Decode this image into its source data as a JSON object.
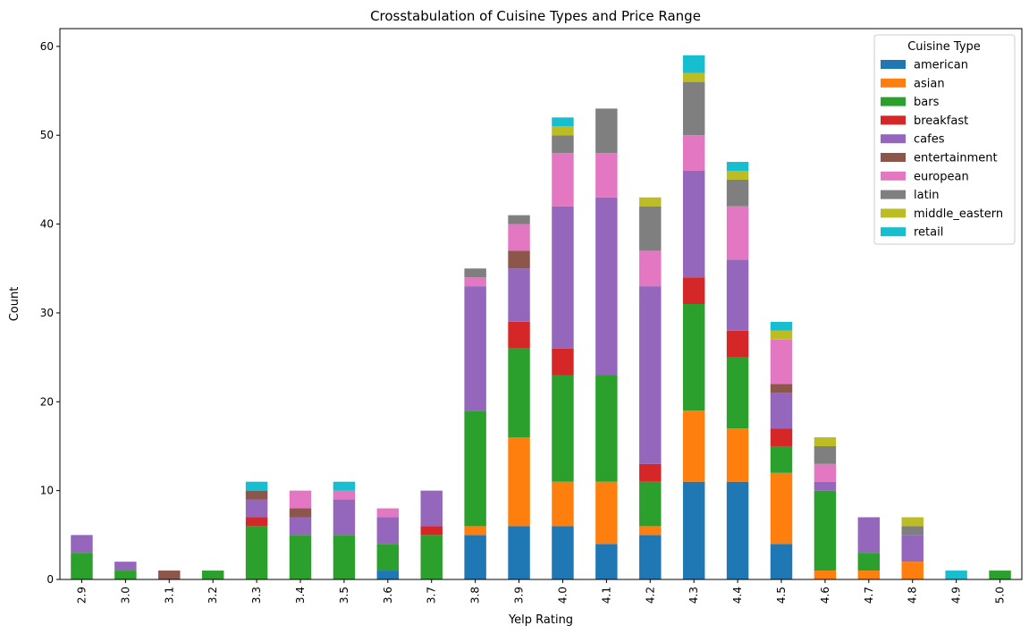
{
  "chart_data": {
    "type": "bar",
    "stacked": true,
    "title": "Crosstabulation of Cuisine Types and Price Range",
    "xlabel": "Yelp Rating",
    "ylabel": "Count",
    "ylim": [
      0,
      62
    ],
    "yticks": [
      0,
      10,
      20,
      30,
      40,
      50,
      60
    ],
    "grid": false,
    "legend": {
      "title": "Cuisine Type",
      "placement": "top-right"
    },
    "categories": [
      "2.9",
      "3.0",
      "3.1",
      "3.2",
      "3.3",
      "3.4",
      "3.5",
      "3.6",
      "3.7",
      "3.8",
      "3.9",
      "4.0",
      "4.1",
      "4.2",
      "4.3",
      "4.4",
      "4.5",
      "4.6",
      "4.7",
      "4.8",
      "4.9",
      "5.0"
    ],
    "series": [
      {
        "name": "american",
        "color": "#1f77b4",
        "values": [
          0,
          0,
          0,
          0,
          0,
          0,
          0,
          1,
          0,
          5,
          6,
          6,
          4,
          5,
          11,
          11,
          4,
          0,
          0,
          0,
          0,
          0
        ]
      },
      {
        "name": "asian",
        "color": "#ff7f0e",
        "values": [
          0,
          0,
          0,
          0,
          0,
          0,
          0,
          0,
          0,
          1,
          10,
          5,
          7,
          1,
          8,
          6,
          8,
          1,
          1,
          2,
          0,
          0
        ]
      },
      {
        "name": "bars",
        "color": "#2ca02c",
        "values": [
          3,
          1,
          0,
          1,
          6,
          5,
          5,
          3,
          5,
          13,
          10,
          12,
          12,
          5,
          12,
          8,
          3,
          9,
          2,
          0,
          0,
          1
        ]
      },
      {
        "name": "breakfast",
        "color": "#d62728",
        "values": [
          0,
          0,
          0,
          0,
          1,
          0,
          0,
          0,
          1,
          0,
          3,
          3,
          0,
          2,
          3,
          3,
          2,
          0,
          0,
          0,
          0,
          0
        ]
      },
      {
        "name": "cafes",
        "color": "#9467bd",
        "values": [
          2,
          1,
          0,
          0,
          2,
          2,
          4,
          3,
          4,
          14,
          6,
          16,
          20,
          20,
          12,
          8,
          4,
          1,
          4,
          3,
          0,
          0
        ]
      },
      {
        "name": "entertainment",
        "color": "#8c564b",
        "values": [
          0,
          0,
          1,
          0,
          1,
          1,
          0,
          0,
          0,
          0,
          2,
          0,
          0,
          0,
          0,
          0,
          1,
          0,
          0,
          0,
          0,
          0
        ]
      },
      {
        "name": "european",
        "color": "#e377c2",
        "values": [
          0,
          0,
          0,
          0,
          0,
          2,
          1,
          1,
          0,
          1,
          3,
          6,
          5,
          4,
          4,
          6,
          5,
          2,
          0,
          0,
          0,
          0
        ]
      },
      {
        "name": "latin",
        "color": "#7f7f7f",
        "values": [
          0,
          0,
          0,
          0,
          0,
          0,
          0,
          0,
          0,
          1,
          1,
          2,
          5,
          5,
          6,
          3,
          0,
          2,
          0,
          1,
          0,
          0
        ]
      },
      {
        "name": "middle_eastern",
        "color": "#bcbd22",
        "values": [
          0,
          0,
          0,
          0,
          0,
          0,
          0,
          0,
          0,
          0,
          0,
          1,
          0,
          1,
          1,
          1,
          1,
          1,
          0,
          1,
          0,
          0
        ]
      },
      {
        "name": "retail",
        "color": "#17becf",
        "values": [
          0,
          0,
          0,
          0,
          1,
          0,
          1,
          0,
          0,
          0,
          0,
          1,
          0,
          0,
          2,
          1,
          1,
          0,
          0,
          0,
          1,
          0
        ]
      }
    ]
  }
}
